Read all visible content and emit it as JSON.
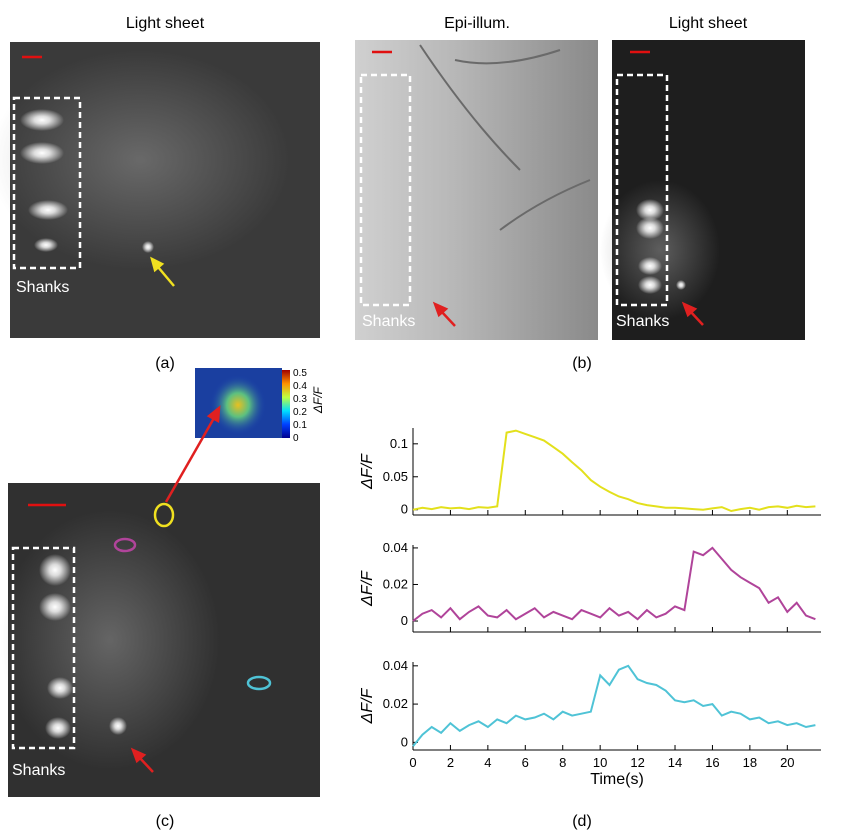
{
  "labels": [
    "(a)",
    "(b)",
    "(c)",
    "(d)"
  ],
  "image_titles": [
    "Light sheet",
    "Epi-illum.",
    "Light sheet"
  ],
  "shanks": [
    "Shanks",
    "Shanks",
    "Shanks",
    "Shanks"
  ],
  "colorbar": {
    "ticks": [
      "0.5",
      "0.4",
      "0.3",
      "0.2",
      "0.1",
      "0"
    ],
    "label": "ΔF/F"
  },
  "chart_data": [
    {
      "type": "line",
      "ylabel": "ΔF/F",
      "color": "#e3e01c",
      "x": [
        0,
        0.5,
        1,
        1.5,
        2,
        2.5,
        3,
        3.5,
        4,
        4.5,
        5,
        5.5,
        6,
        6.5,
        7,
        7.5,
        8,
        8.5,
        9,
        9.5,
        10,
        10.5,
        11,
        11.5,
        12,
        12.5,
        13,
        13.5,
        14,
        14.5,
        15,
        15.5,
        16,
        16.5,
        17,
        17.5,
        18,
        18.5,
        19,
        19.5,
        20,
        20.5,
        21,
        21.5
      ],
      "values": [
        0,
        0.003,
        0.001,
        0.004,
        0.002,
        0.003,
        0.001,
        0.004,
        0.003,
        0.005,
        0.117,
        0.12,
        0.115,
        0.11,
        0.105,
        0.095,
        0.085,
        0.072,
        0.06,
        0.045,
        0.035,
        0.027,
        0.02,
        0.016,
        0.01,
        0.007,
        0.005,
        0.003,
        0.003,
        0.002,
        0.001,
        0,
        0.002,
        0.004,
        -0.002,
        0.001,
        0.003,
        0,
        0.004,
        0.005,
        0.003,
        0.006,
        0.004,
        0.005
      ],
      "xlim": [
        0,
        21.8
      ],
      "ylim": [
        -0.008,
        0.124
      ],
      "yticks": [
        0,
        0.05,
        0.1
      ]
    },
    {
      "type": "line",
      "ylabel": "ΔF/F",
      "color": "#b0449a",
      "x": [
        0,
        0.5,
        1,
        1.5,
        2,
        2.5,
        3,
        3.5,
        4,
        4.5,
        5,
        5.5,
        6,
        6.5,
        7,
        7.5,
        8,
        8.5,
        9,
        9.5,
        10,
        10.5,
        11,
        11.5,
        12,
        12.5,
        13,
        13.5,
        14,
        14.5,
        15,
        15.5,
        16,
        16.5,
        17,
        17.5,
        18,
        18.5,
        19,
        19.5,
        20,
        20.5,
        21,
        21.5
      ],
      "values": [
        0,
        0.004,
        0.006,
        0.002,
        0.007,
        0.001,
        0.005,
        0.008,
        0.003,
        0.002,
        0.006,
        0.001,
        0.004,
        0.007,
        0.002,
        0.005,
        0.003,
        0.001,
        0.006,
        0.004,
        0.002,
        0.007,
        0.003,
        0.005,
        0.001,
        0.006,
        0.002,
        0.004,
        0.008,
        0.006,
        0.038,
        0.036,
        0.04,
        0.034,
        0.028,
        0.024,
        0.021,
        0.018,
        0.01,
        0.013,
        0.005,
        0.01,
        0.003,
        0.001
      ],
      "xlim": [
        0,
        21.8
      ],
      "ylim": [
        -0.006,
        0.0416
      ],
      "yticks": [
        0,
        0.02,
        0.04
      ]
    },
    {
      "type": "line",
      "ylabel": "ΔF/F",
      "color": "#4fc3d6",
      "xlabel": "Time(s)",
      "x": [
        0,
        0.5,
        1,
        1.5,
        2,
        2.5,
        3,
        3.5,
        4,
        4.5,
        5,
        5.5,
        6,
        6.5,
        7,
        7.5,
        8,
        8.5,
        9,
        9.5,
        10,
        10.5,
        11,
        11.5,
        12,
        12.5,
        13,
        13.5,
        14,
        14.5,
        15,
        15.5,
        16,
        16.5,
        17,
        17.5,
        18,
        18.5,
        19,
        19.5,
        20,
        20.5,
        21,
        21.5
      ],
      "values": [
        -0.002,
        0.004,
        0.008,
        0.005,
        0.01,
        0.006,
        0.009,
        0.011,
        0.008,
        0.012,
        0.01,
        0.014,
        0.012,
        0.013,
        0.015,
        0.012,
        0.016,
        0.014,
        0.015,
        0.016,
        0.035,
        0.03,
        0.038,
        0.04,
        0.033,
        0.031,
        0.03,
        0.027,
        0.022,
        0.021,
        0.022,
        0.019,
        0.02,
        0.014,
        0.016,
        0.015,
        0.012,
        0.013,
        0.01,
        0.011,
        0.009,
        0.01,
        0.008,
        0.009
      ],
      "xlim": [
        0,
        21.8
      ],
      "ylim": [
        -0.004,
        0.042
      ],
      "yticks": [
        0,
        0.02,
        0.04
      ],
      "xticks": [
        0,
        2,
        4,
        6,
        8,
        10,
        12,
        14,
        16,
        18,
        20
      ]
    }
  ]
}
